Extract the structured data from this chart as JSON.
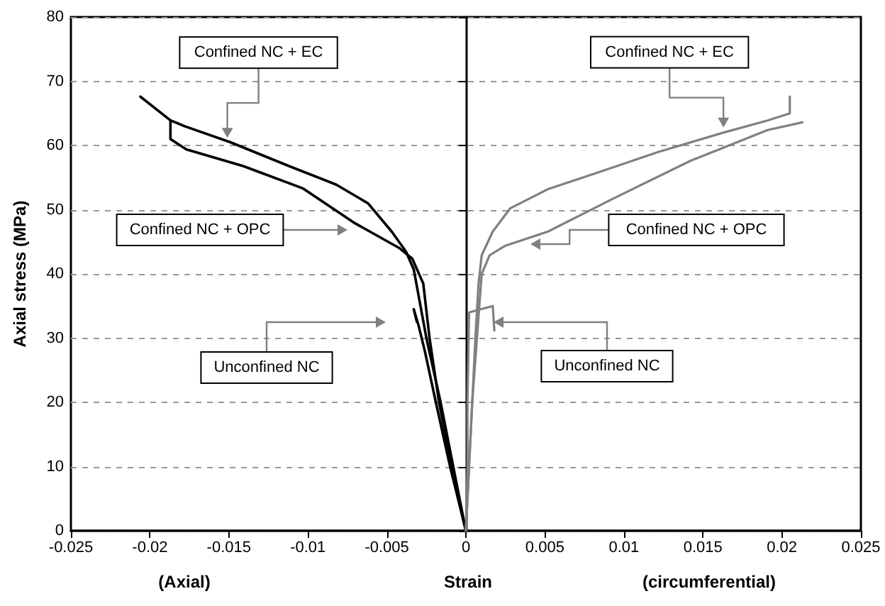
{
  "chart_data": {
    "type": "line",
    "xlabel": "Strain",
    "ylabel": "Axial stress (MPa)",
    "xlim": [
      -0.025,
      0.025
    ],
    "xticks": [
      -0.025,
      -0.02,
      -0.015,
      -0.01,
      -0.005,
      0,
      0.005,
      0.01,
      0.015,
      0.02,
      0.025
    ],
    "ylim": [
      0,
      80
    ],
    "yticks": [
      0,
      10,
      20,
      30,
      40,
      50,
      60,
      70,
      80
    ],
    "grid": "y",
    "marker": "none",
    "line_style": "solid",
    "series": [
      {
        "color": "#000000",
        "x": [
          0,
          -0.0008,
          -0.0016,
          -0.0025,
          -0.0033,
          -0.0038,
          -0.0047,
          -0.0062,
          -0.0082,
          -0.0112,
          -0.0149,
          -0.0178,
          -0.0187,
          -0.0206
        ],
        "values": [
          0,
          10,
          20,
          30,
          40.7,
          43.5,
          46.6,
          51,
          53.9,
          56.8,
          60.5,
          63,
          63.9,
          67.6
        ]
      },
      {
        "color": "#000000",
        "x": [
          0,
          -0.0009,
          -0.0017,
          -0.0023,
          -0.0027,
          -0.0034,
          -0.0042,
          -0.0071,
          -0.0103,
          -0.0141,
          -0.0177,
          -0.0187,
          -0.0187
        ],
        "values": [
          0,
          10,
          20,
          30,
          38.5,
          42.4,
          44,
          48,
          53.3,
          56.8,
          59.4,
          61,
          63.9
        ]
      },
      {
        "color": "#000000",
        "x": [
          0,
          -0.001,
          -0.0019,
          -0.0026,
          -0.003,
          -0.0033,
          -0.0031
        ],
        "values": [
          0,
          10,
          20,
          28,
          32,
          34.5,
          32.5
        ]
      },
      {
        "color": "#808080",
        "x": [
          0,
          0.0002,
          0.0004,
          0.0006,
          0.0008,
          0.001,
          0.0017,
          0.0028,
          0.0052,
          0.008,
          0.0122,
          0.0163,
          0.0191,
          0.0205,
          0.0205
        ],
        "values": [
          0,
          10,
          20,
          30,
          38.5,
          42.9,
          46.6,
          50.2,
          53.2,
          55.5,
          59,
          62,
          63.9,
          65,
          67.6
        ]
      },
      {
        "color": "#808080",
        "x": [
          0,
          0.0002,
          0.0004,
          0.0007,
          0.001,
          0.0015,
          0.0025,
          0.0052,
          0.0093,
          0.0142,
          0.0191,
          0.0213
        ],
        "values": [
          0,
          10,
          20,
          30,
          40,
          42.9,
          44.4,
          46.6,
          51.7,
          57.6,
          62.4,
          63.6
        ]
      },
      {
        "color": "#808080",
        "x": [
          0,
          0.0001,
          0.0001,
          0.0002,
          0.0017,
          0.0018
        ],
        "values": [
          0,
          10,
          20,
          34,
          35,
          31.2
        ]
      }
    ],
    "annotations": [
      {
        "text": "Confined NC + EC",
        "x": -0.0151,
        "y": 61.2
      },
      "Confined NC + OPC",
      "Unconfined NC",
      {
        "text": "Confined NC + EC",
        "x": 0.0163,
        "y": 62.8
      },
      "Confined NC +  OPC",
      "Unconfined NC",
      "(Axial)",
      "(circumferential)"
    ]
  }
}
